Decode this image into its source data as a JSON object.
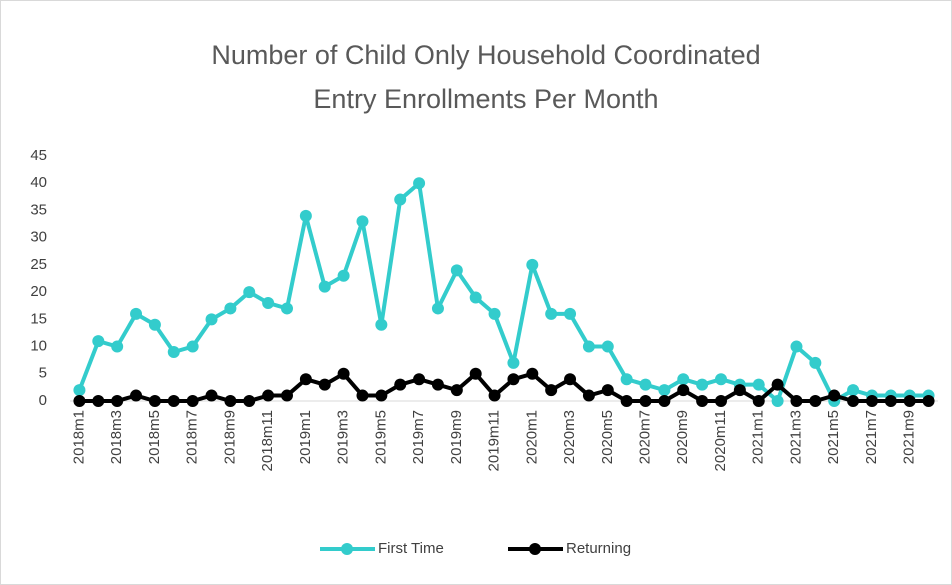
{
  "chart_data": {
    "type": "line",
    "title": [
      "Number of Child Only Household Coordinated",
      "Entry Enrollments Per Month"
    ],
    "categories": [
      "2018m1",
      null,
      "2018m3",
      null,
      "2018m5",
      null,
      "2018m7",
      null,
      "2018m9",
      null,
      "2018m11",
      null,
      "2019m1",
      null,
      "2019m3",
      null,
      "2019m5",
      null,
      "2019m7",
      null,
      "2019m9",
      null,
      "2019m11",
      null,
      "2020m1",
      null,
      "2020m3",
      null,
      "2020m5",
      null,
      "2020m7",
      null,
      "2020m9",
      null,
      "2020m11",
      null,
      "2021m1",
      null,
      "2021m3",
      null,
      "2021m5",
      null,
      "2021m7",
      null,
      "2021m9",
      null
    ],
    "series": [
      {
        "name": "First Time",
        "color": "#33cccc",
        "values": [
          2,
          11,
          10,
          16,
          14,
          9,
          10,
          15,
          17,
          20,
          18,
          17,
          34,
          21,
          23,
          33,
          14,
          37,
          40,
          17,
          24,
          19,
          16,
          7,
          25,
          16,
          16,
          10,
          10,
          4,
          3,
          2,
          4,
          3,
          4,
          3,
          3,
          0,
          10,
          7,
          0,
          2,
          1,
          1,
          1,
          1
        ]
      },
      {
        "name": "Returning",
        "color": "#000000",
        "values": [
          0,
          0,
          0,
          1,
          0,
          0,
          0,
          1,
          0,
          0,
          1,
          1,
          4,
          3,
          5,
          1,
          1,
          3,
          4,
          3,
          2,
          5,
          1,
          4,
          5,
          2,
          4,
          1,
          2,
          0,
          0,
          0,
          2,
          0,
          0,
          2,
          0,
          3,
          0,
          0,
          1,
          0,
          0,
          0,
          0,
          0
        ]
      }
    ],
    "ylim": [
      0,
      45
    ],
    "yticks": [
      0,
      5,
      10,
      15,
      20,
      25,
      30,
      35,
      40,
      45
    ],
    "grid": false,
    "legend": "bottom"
  }
}
